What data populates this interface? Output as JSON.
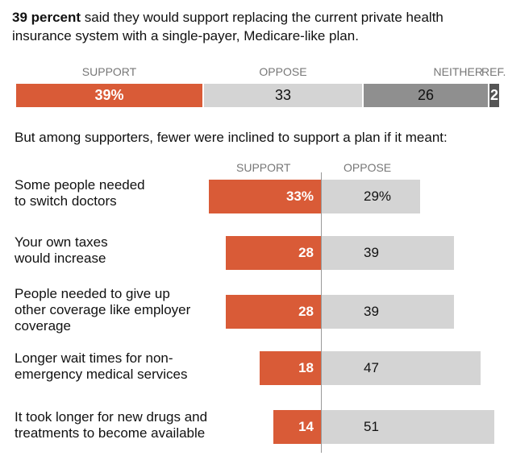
{
  "headline": {
    "bold": "39 percent",
    "rest": " said they would support replacing the current private health insurance system with a single-payer, Medicare-like plan."
  },
  "colors": {
    "support": "#d95b37",
    "oppose": "#d4d4d4",
    "neither": "#8f8f8f",
    "refused": "#555555"
  },
  "subhead": "But among supporters, fewer were inclined to support a plan if it meant:",
  "chart_data": [
    {
      "type": "bar",
      "orientation": "horizontal-stacked",
      "categories": [
        "SUPPORT",
        "OPPOSE",
        "NEITHER",
        "REF."
      ],
      "values": [
        39,
        33,
        26,
        2
      ],
      "value_labels": [
        "39%",
        "33",
        "26",
        "2"
      ]
    },
    {
      "type": "bar",
      "orientation": "horizontal-diverging",
      "series": [
        {
          "name": "SUPPORT",
          "values": [
            33,
            28,
            28,
            18,
            14
          ],
          "value_labels": [
            "33%",
            "28",
            "28",
            "18",
            "14"
          ]
        },
        {
          "name": "OPPOSE",
          "values": [
            29,
            39,
            39,
            47,
            51
          ],
          "value_labels": [
            "29%",
            "39",
            "39",
            "47",
            "51"
          ]
        }
      ],
      "categories": [
        [
          "Some people needed",
          "to switch doctors"
        ],
        [
          "Your own taxes",
          "would increase"
        ],
        [
          "People needed to give up",
          "other coverage like employer",
          "coverage"
        ],
        [
          "Longer wait times for non-",
          "emergency medical services"
        ],
        [
          "It took longer for new drugs and",
          "treatments to become available"
        ]
      ]
    }
  ]
}
